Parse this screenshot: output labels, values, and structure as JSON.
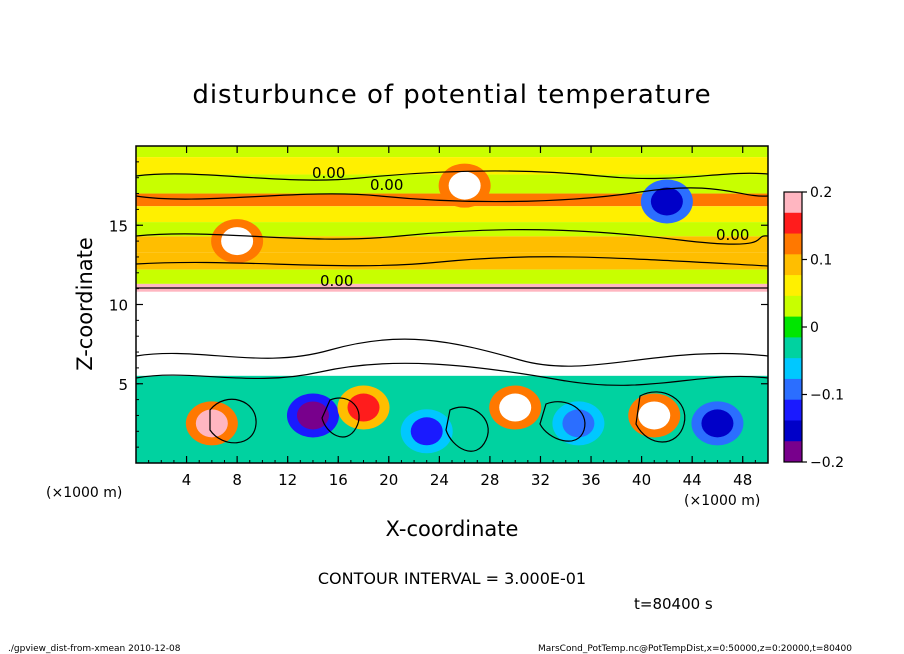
{
  "chart_data": {
    "type": "heatmap",
    "title": "disturbunce of potential temperature",
    "xlabel": "X-coordinate",
    "ylabel": "Z-coordinate",
    "x_unit_label": "(×1000 m)",
    "y_unit_label": "(×1000 m)",
    "xlim": [
      0,
      50
    ],
    "ylim": [
      0,
      20
    ],
    "x_ticks": [
      4,
      8,
      12,
      16,
      20,
      24,
      28,
      32,
      36,
      40,
      44,
      48
    ],
    "y_ticks": [
      5,
      10,
      15
    ],
    "colorbar": {
      "range": [
        -0.2,
        0.2
      ],
      "tick_values": [
        0.2,
        0.1,
        0,
        -0.1,
        -0.2
      ],
      "tick_labels": [
        "0.2",
        "0.1",
        "0",
        "−0.1",
        "−0.2"
      ],
      "colors": [
        "#ffb6c1",
        "#ff1c1c",
        "#ff7800",
        "#ffbe00",
        "#fff000",
        "#c8ff00",
        "#00e600",
        "#00d2a0",
        "#00c8ff",
        "#2b6eff",
        "#1a1aff",
        "#0000c8",
        "#78008c"
      ]
    },
    "contour_label": "0.00",
    "contour_interval_text": "CONTOUR INTERVAL = 3.000E-01",
    "time_text": "t=80400 s",
    "bands": [
      {
        "z0": 19.3,
        "z1": 20,
        "value": 0.04
      },
      {
        "z0": 18.2,
        "z1": 19.3,
        "value": 0.06
      },
      {
        "z0": 17.0,
        "z1": 18.2,
        "value": 0.03
      },
      {
        "z0": 16.2,
        "z1": 17.0,
        "value": 0.12
      },
      {
        "z0": 15.2,
        "z1": 16.2,
        "value": 0.05
      },
      {
        "z0": 14.3,
        "z1": 15.2,
        "value": 0.02
      },
      {
        "z0": 13.3,
        "z1": 14.3,
        "value": 0.09
      },
      {
        "z0": 12.2,
        "z1": 13.3,
        "value": 0.08
      },
      {
        "z0": 11.3,
        "z1": 12.2,
        "value": 0.02
      },
      {
        "z0": 10.8,
        "z1": 11.3,
        "value": 0.17
      },
      {
        "z0": 9.5,
        "z1": 10.8,
        "value": 0.22
      },
      {
        "z0": 5.5,
        "z1": 9.5,
        "value": 0.22
      },
      {
        "z0": 0,
        "z1": 5.5,
        "value": -0.04
      }
    ],
    "blobs": [
      {
        "x": 6,
        "z": 2.5,
        "value": 0.2
      },
      {
        "x": 14,
        "z": 3.0,
        "value": -0.18
      },
      {
        "x": 18,
        "z": 3.5,
        "value": 0.15
      },
      {
        "x": 23,
        "z": 2.0,
        "value": -0.12
      },
      {
        "x": 30,
        "z": 3.5,
        "value": 0.22
      },
      {
        "x": 35,
        "z": 2.5,
        "value": -0.1
      },
      {
        "x": 41,
        "z": 3.0,
        "value": 0.22
      },
      {
        "x": 46,
        "z": 2.5,
        "value": -0.15
      },
      {
        "x": 26,
        "z": 17.5,
        "value": 0.22
      },
      {
        "x": 42,
        "z": 16.5,
        "value": -0.15
      },
      {
        "x": 8,
        "z": 14.0,
        "value": 0.22
      }
    ]
  },
  "footer": {
    "left": "./gpview_dist-from-xmean  2010-12-08",
    "right": "MarsCond_PotTemp.nc@PotTempDist,x=0:50000,z=0:20000,t=80400"
  }
}
